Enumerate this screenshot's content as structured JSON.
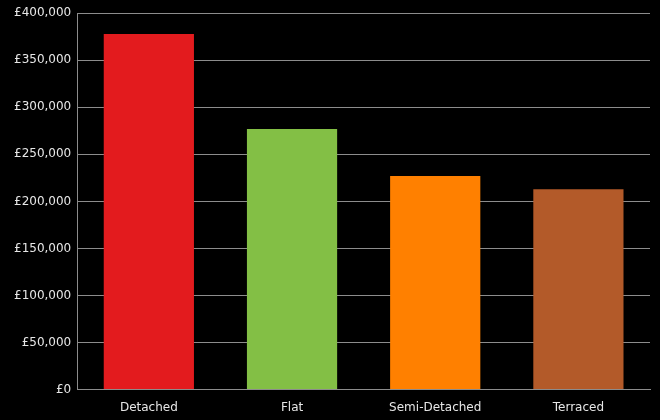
{
  "chart_data": {
    "type": "bar",
    "categories": [
      "Detached",
      "Flat",
      "Semi-Detached",
      "Terraced"
    ],
    "values": [
      378000,
      277000,
      227000,
      213000
    ],
    "colors": [
      "#e31b1e",
      "#83bf45",
      "#ff8000",
      "#b35a29"
    ],
    "ylim": [
      0,
      400000
    ],
    "yticks": [
      {
        "value": 0,
        "label": "£0"
      },
      {
        "value": 50000,
        "label": "£50,000"
      },
      {
        "value": 100000,
        "label": "£100,000"
      },
      {
        "value": 150000,
        "label": "£150,000"
      },
      {
        "value": 200000,
        "label": "£200,000"
      },
      {
        "value": 250000,
        "label": "£250,000"
      },
      {
        "value": 300000,
        "label": "£300,000"
      },
      {
        "value": 350000,
        "label": "£350,000"
      },
      {
        "value": 400000,
        "label": "£400,000"
      }
    ],
    "grid": true
  }
}
